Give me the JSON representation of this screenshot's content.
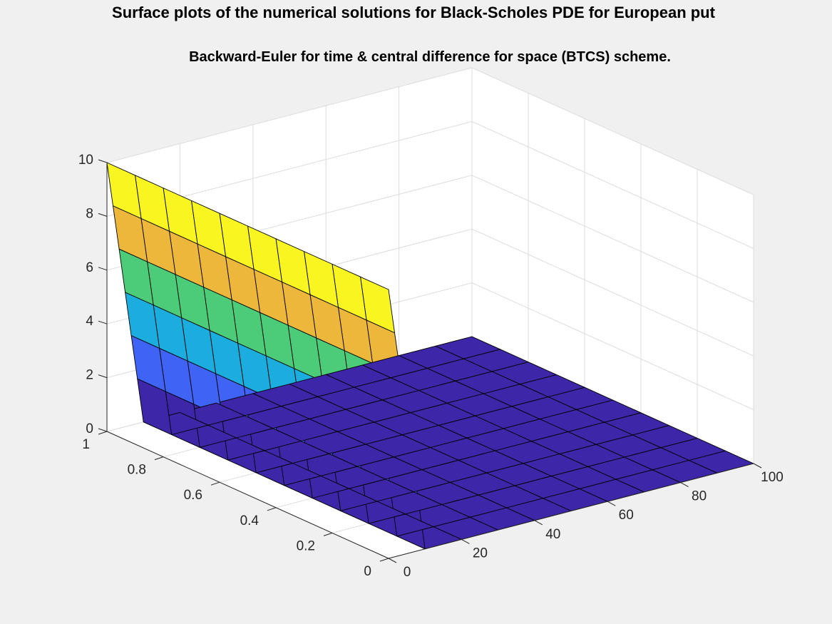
{
  "figure": {
    "suptitle": "Surface plots of the numerical solutions for Black-Scholes PDE for European put"
  },
  "chart_data": {
    "type": "surface",
    "title": "Backward-Euler for time & central difference for space (BTCS) scheme.",
    "x_axis": {
      "range": [
        0,
        100
      ],
      "ticks": [
        0,
        20,
        40,
        60,
        80,
        100
      ]
    },
    "y_axis": {
      "range": [
        0,
        1
      ],
      "ticks": [
        0,
        0.2,
        0.4,
        0.6,
        0.8,
        1
      ]
    },
    "z_axis": {
      "range": [
        0,
        10
      ],
      "ticks": [
        0,
        2,
        4,
        6,
        8,
        10
      ]
    },
    "grid": true,
    "colormap": [
      "#3e26a8",
      "#3f63f4",
      "#1aadde",
      "#4ccc78",
      "#ecb73a",
      "#f8f520"
    ],
    "x": [
      0,
      10,
      20,
      30,
      40,
      50,
      60,
      70,
      80,
      90,
      100
    ],
    "y": [
      0,
      0.1,
      0.2,
      0.3,
      0.4,
      0.5,
      0.6,
      0.7,
      0.8,
      0.9,
      1.0
    ],
    "z_by_x": [
      10,
      0,
      0,
      0,
      0,
      0,
      0,
      0,
      0,
      0,
      0
    ]
  }
}
